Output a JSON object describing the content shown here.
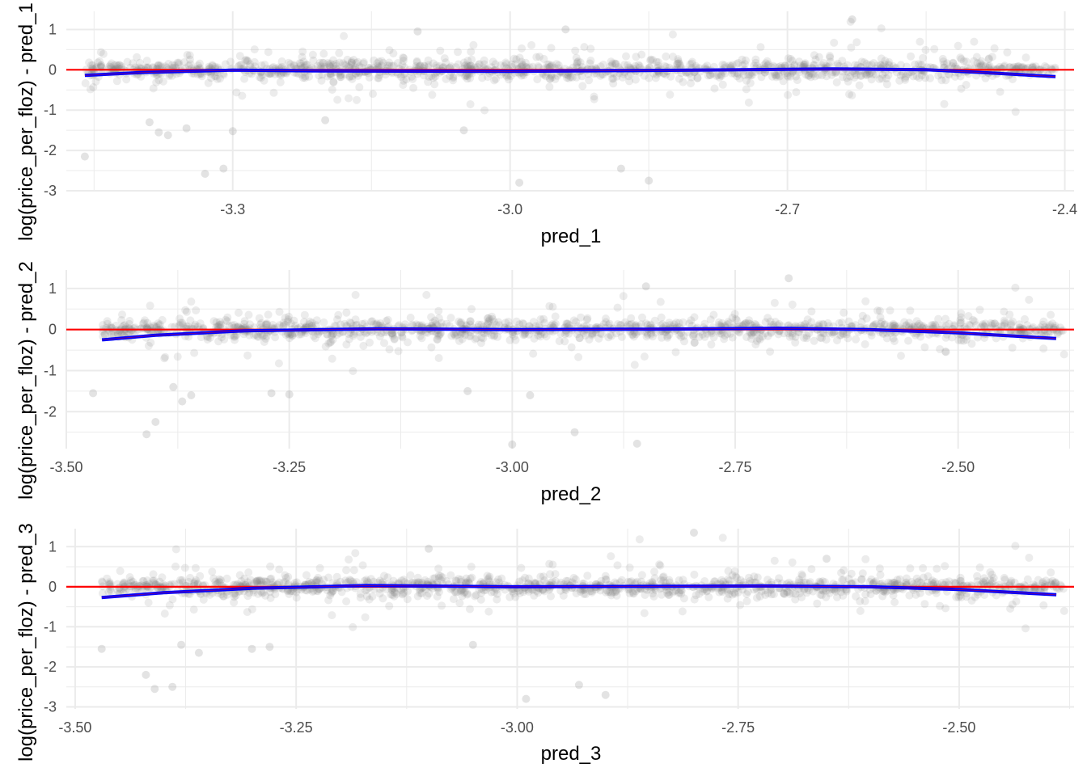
{
  "colors": {
    "points": "#808080",
    "zero_line": "#ff0000",
    "smooth": "#0000ff",
    "grid": "#ebebeb"
  },
  "chart_data": [
    {
      "type": "scatter",
      "xlabel": "pred_1",
      "ylabel": "log(price_per_floz) - pred_1",
      "xlim": [
        -3.48,
        -2.39
      ],
      "ylim": [
        -3.0,
        1.45
      ],
      "x_ticks": [
        -3.3,
        -3.0,
        -2.7,
        -2.4
      ],
      "x_tick_labels": [
        "-3.3",
        "-3.0",
        "-2.7",
        "-2.4"
      ],
      "y_ticks": [
        1,
        0,
        -1,
        -2,
        -3
      ],
      "y_tick_labels": [
        "1",
        "0",
        "-1",
        "-2",
        "-3"
      ],
      "grid": true,
      "hline": 0,
      "point_cloud": {
        "x_range": [
          -3.46,
          -2.41
        ],
        "core_sd": 0.12,
        "alpha": 0.15
      },
      "outliers": [
        [
          -3.46,
          -2.15
        ],
        [
          -3.37,
          -1.62
        ],
        [
          -3.38,
          -1.55
        ],
        [
          -3.39,
          -1.3
        ],
        [
          -3.35,
          -1.45
        ],
        [
          -3.3,
          -1.52
        ],
        [
          -3.33,
          -2.58
        ],
        [
          -3.31,
          -2.45
        ],
        [
          -2.88,
          -2.45
        ],
        [
          -2.85,
          -2.75
        ],
        [
          -2.99,
          -2.8
        ],
        [
          -2.63,
          1.25
        ],
        [
          -3.1,
          0.95
        ],
        [
          -2.94,
          1.0
        ],
        [
          -3.05,
          -1.5
        ],
        [
          -3.2,
          -1.25
        ]
      ],
      "smooth": {
        "x": [
          -3.46,
          -3.4,
          -3.3,
          -3.2,
          -3.0,
          -2.8,
          -2.65,
          -2.55,
          -2.48,
          -2.41
        ],
        "y": [
          -0.14,
          -0.07,
          -0.01,
          -0.03,
          -0.04,
          -0.01,
          0.02,
          0.0,
          -0.08,
          -0.17
        ]
      }
    },
    {
      "type": "scatter",
      "xlabel": "pred_2",
      "ylabel": "log(price_per_floz) - pred_2",
      "xlim": [
        -3.5,
        -2.37
      ],
      "ylim": [
        -2.9,
        1.45
      ],
      "x_ticks": [
        -3.5,
        -3.25,
        -3.0,
        -2.75,
        -2.5
      ],
      "x_tick_labels": [
        "-3.50",
        "-3.25",
        "-3.00",
        "-2.75",
        "-2.50"
      ],
      "y_ticks": [
        1,
        0,
        -1,
        -2
      ],
      "y_tick_labels": [
        "1",
        "0",
        "-1",
        "-2"
      ],
      "grid": true,
      "hline": 0,
      "point_cloud": {
        "x_range": [
          -3.46,
          -2.38
        ],
        "core_sd": 0.12,
        "alpha": 0.15
      },
      "outliers": [
        [
          -3.47,
          -1.55
        ],
        [
          -3.41,
          -2.55
        ],
        [
          -3.4,
          -2.25
        ],
        [
          -3.37,
          -1.75
        ],
        [
          -3.36,
          -1.6
        ],
        [
          -3.38,
          -1.4
        ],
        [
          -3.27,
          -1.55
        ],
        [
          -3.25,
          -1.58
        ],
        [
          -3.0,
          -2.8
        ],
        [
          -2.93,
          -2.5
        ],
        [
          -2.86,
          -2.78
        ],
        [
          -2.85,
          1.05
        ],
        [
          -2.69,
          1.25
        ],
        [
          -3.05,
          -1.5
        ],
        [
          -2.98,
          -1.6
        ]
      ],
      "smooth": {
        "x": [
          -3.46,
          -3.4,
          -3.3,
          -3.15,
          -3.0,
          -2.85,
          -2.7,
          -2.6,
          -2.5,
          -2.39
        ],
        "y": [
          -0.25,
          -0.14,
          -0.03,
          0.02,
          0.0,
          0.01,
          0.03,
          0.0,
          -0.08,
          -0.22
        ]
      }
    },
    {
      "type": "scatter",
      "xlabel": "pred_3",
      "ylabel": "log(price_per_floz) - pred_3",
      "xlim": [
        -3.51,
        -2.37
      ],
      "ylim": [
        -3.05,
        1.45
      ],
      "x_ticks": [
        -3.5,
        -3.25,
        -3.0,
        -2.75,
        -2.5
      ],
      "x_tick_labels": [
        "-3.50",
        "-3.25",
        "-3.00",
        "-2.75",
        "-2.50"
      ],
      "y_ticks": [
        1,
        0,
        -1,
        -2,
        -3
      ],
      "y_tick_labels": [
        "1",
        "0",
        "-1",
        "-2",
        "-3"
      ],
      "grid": true,
      "hline": 0,
      "point_cloud": {
        "x_range": [
          -3.47,
          -2.38
        ],
        "core_sd": 0.12,
        "alpha": 0.15
      },
      "outliers": [
        [
          -3.47,
          -1.55
        ],
        [
          -3.42,
          -2.2
        ],
        [
          -3.41,
          -2.55
        ],
        [
          -3.39,
          -2.5
        ],
        [
          -3.38,
          -1.45
        ],
        [
          -3.36,
          -1.65
        ],
        [
          -3.3,
          -1.55
        ],
        [
          -3.28,
          -1.5
        ],
        [
          -2.99,
          -2.8
        ],
        [
          -2.93,
          -2.45
        ],
        [
          -2.9,
          -2.7
        ],
        [
          -2.8,
          1.35
        ],
        [
          -3.1,
          0.95
        ],
        [
          -2.65,
          0.7
        ],
        [
          -3.05,
          -1.45
        ]
      ],
      "smooth": {
        "x": [
          -3.47,
          -3.4,
          -3.3,
          -3.17,
          -3.0,
          -2.85,
          -2.72,
          -2.6,
          -2.5,
          -2.39
        ],
        "y": [
          -0.27,
          -0.15,
          -0.04,
          0.03,
          0.0,
          0.01,
          0.02,
          0.0,
          -0.07,
          -0.2
        ]
      }
    }
  ]
}
